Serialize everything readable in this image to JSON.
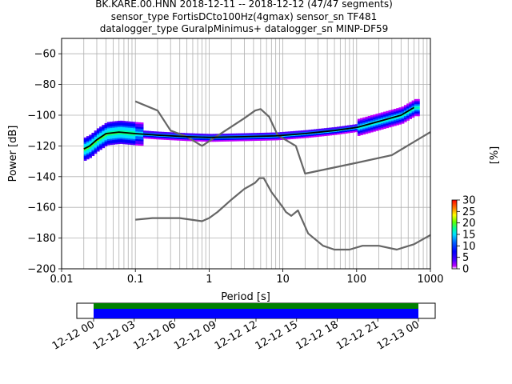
{
  "title": {
    "line1": "BK.KARE.00.HNN   2018-12-11 -- 2018-12-12  (47/47 segments)",
    "line2": "sensor_type FortisDCto100Hz(4gmax) sensor_sn TF481",
    "line3": "datalogger_type GuralpMinimus+ datalogger_sn MINP-DF59"
  },
  "colorbar": {
    "label": "[%]",
    "ticks": [
      "0",
      "5",
      "10",
      "15",
      "20",
      "25",
      "30"
    ],
    "range": [
      0,
      30
    ]
  },
  "timeline": {
    "ticks": [
      "12-12 00",
      "12-12 03",
      "12-12 06",
      "12-12 09",
      "12-12 12",
      "12-12 15",
      "12-12 18",
      "12-12 21",
      "12-13 00"
    ],
    "coverage_color": "#0000ff",
    "data_color": "#008000"
  },
  "chart_data": {
    "type": "line",
    "title": "BK.KARE.00.HNN   2018-12-11 -- 2018-12-12  (47/47 segments)",
    "xlabel": "Period [s]",
    "ylabel": "Power [dB]",
    "xscale": "log",
    "xlim": [
      0.01,
      1000
    ],
    "ylim": [
      -200,
      -50
    ],
    "xtick_labels": [
      "0.01",
      "0.1",
      "1",
      "10",
      "100",
      "1000"
    ],
    "ytick_labels": [
      "-60",
      "-80",
      "-100",
      "-120",
      "-140",
      "-160",
      "-180",
      "-200"
    ],
    "grid": true,
    "series": [
      {
        "values": [
          [
            0.1,
            -91
          ],
          [
            0.2,
            -97
          ],
          [
            0.3,
            -110
          ],
          [
            0.5,
            -114
          ],
          [
            0.8,
            -120
          ],
          [
            1,
            -117
          ],
          [
            3,
            -102
          ],
          [
            4.2,
            -97
          ],
          [
            5,
            -96
          ],
          [
            6.5,
            -101
          ],
          [
            8.5,
            -113
          ],
          [
            15,
            -120
          ],
          [
            20,
            -138
          ],
          [
            100,
            -131
          ],
          [
            300,
            -126
          ],
          [
            1000,
            -111
          ]
        ]
      },
      {
        "values": [
          [
            0.1,
            -168
          ],
          [
            0.17,
            -167
          ],
          [
            0.4,
            -167
          ],
          [
            0.8,
            -169
          ],
          [
            1,
            -167
          ],
          [
            1.3,
            -163
          ],
          [
            2,
            -155
          ],
          [
            3,
            -148
          ],
          [
            4.2,
            -144
          ],
          [
            4.8,
            -141
          ],
          [
            5.5,
            -141
          ],
          [
            7,
            -150
          ],
          [
            10,
            -160
          ],
          [
            11,
            -163
          ],
          [
            13,
            -165.5
          ],
          [
            16,
            -162
          ],
          [
            22,
            -177
          ],
          [
            35,
            -185
          ],
          [
            50,
            -187.5
          ],
          [
            80,
            -187.5
          ],
          [
            120,
            -185
          ],
          [
            200,
            -185
          ],
          [
            350,
            -187.5
          ],
          [
            600,
            -184
          ],
          [
            1000,
            -178
          ]
        ]
      },
      {
        "values": [
          [
            0.02,
            -122
          ],
          [
            0.024,
            -120
          ],
          [
            0.03,
            -116
          ],
          [
            0.04,
            -112
          ],
          [
            0.06,
            -111
          ],
          [
            0.1,
            -112
          ],
          [
            0.2,
            -113
          ],
          [
            0.5,
            -114
          ],
          [
            1,
            -114.5
          ],
          [
            3,
            -114
          ],
          [
            8,
            -113.5
          ],
          [
            20,
            -112
          ],
          [
            50,
            -110
          ],
          [
            100,
            -108
          ],
          [
            200,
            -104
          ],
          [
            400,
            -100
          ],
          [
            600,
            -95
          ]
        ]
      }
    ]
  }
}
